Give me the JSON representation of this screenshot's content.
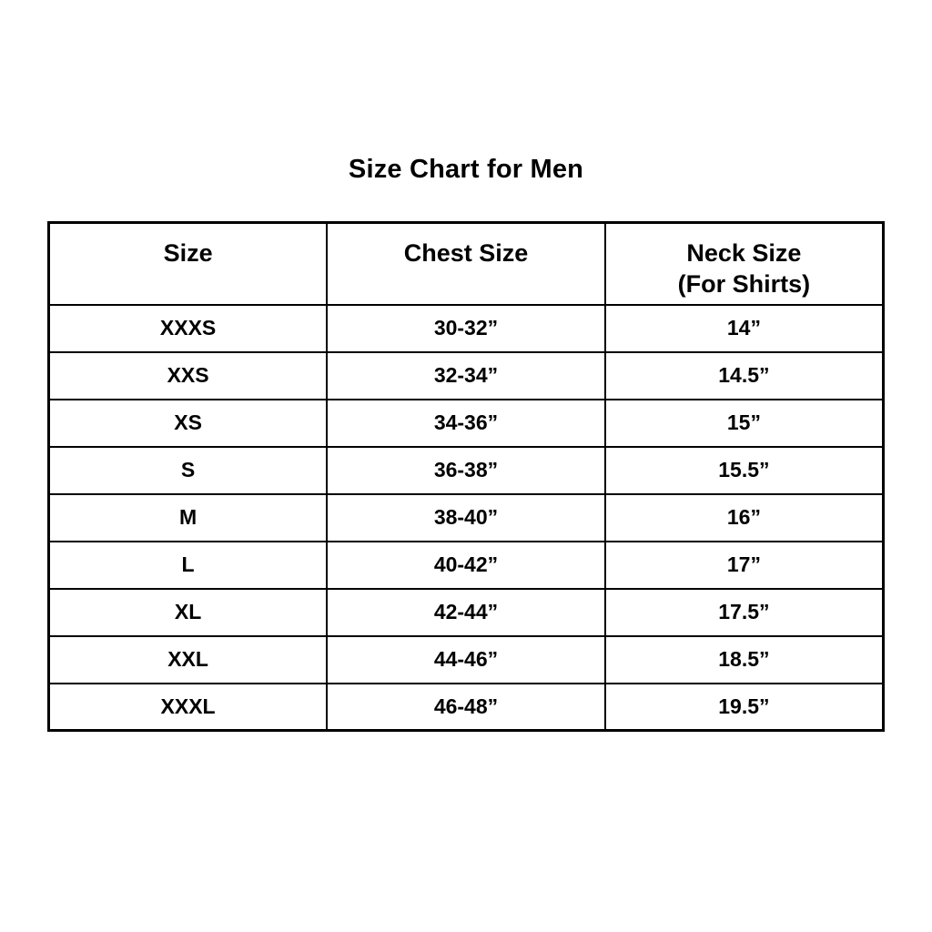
{
  "page": {
    "title": "Size Chart for Men"
  },
  "colors": {
    "background": "#ffffff",
    "border": "#000000",
    "text": "#000000"
  },
  "table": {
    "headers": [
      {
        "label": "Size",
        "sublabel": ""
      },
      {
        "label": "Chest Size",
        "sublabel": ""
      },
      {
        "label": "Neck Size",
        "sublabel": "(For Shirts)"
      }
    ],
    "rows": [
      {
        "size": "XXXS",
        "chest": "30-32”",
        "neck": "14”"
      },
      {
        "size": "XXS",
        "chest": "32-34”",
        "neck": "14.5”"
      },
      {
        "size": "XS",
        "chest": "34-36”",
        "neck": "15”"
      },
      {
        "size": "S",
        "chest": "36-38”",
        "neck": "15.5”"
      },
      {
        "size": "M",
        "chest": "38-40”",
        "neck": "16”"
      },
      {
        "size": "L",
        "chest": "40-42”",
        "neck": "17”"
      },
      {
        "size": "XL",
        "chest": "42-44”",
        "neck": "17.5”"
      },
      {
        "size": "XXL",
        "chest": "44-46”",
        "neck": "18.5”"
      },
      {
        "size": "XXXL",
        "chest": "46-48”",
        "neck": "19.5”"
      }
    ]
  }
}
